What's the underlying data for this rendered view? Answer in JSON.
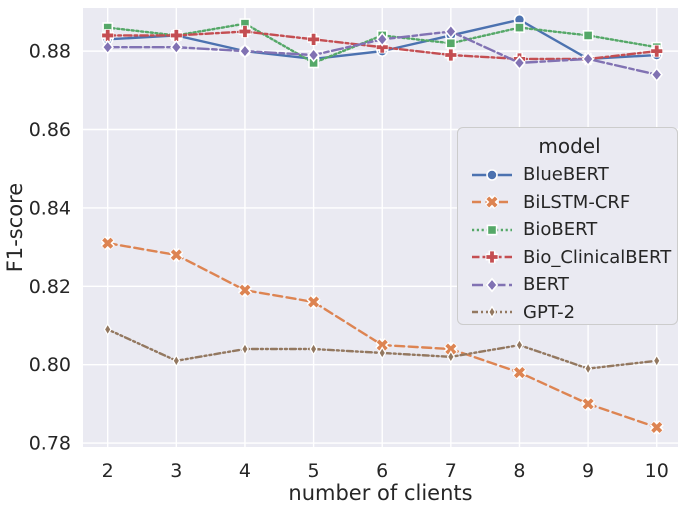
{
  "chart_data": {
    "type": "line",
    "title": "",
    "xlabel": "number of clients",
    "ylabel": "F1-score",
    "x": [
      2,
      3,
      4,
      5,
      6,
      7,
      8,
      9,
      10
    ],
    "xlim": [
      1.64,
      10.31
    ],
    "ylim": [
      0.779,
      0.891
    ],
    "xticks": [
      2,
      3,
      4,
      5,
      6,
      7,
      8,
      9,
      10
    ],
    "yticks": [
      0.78,
      0.8,
      0.82,
      0.84,
      0.86,
      0.88
    ],
    "grid": true,
    "legend_title": "model",
    "legend_position": "center right",
    "background_color": "#EAEAF2",
    "gridline_color": "#FFFFFF",
    "text_color": "#262626",
    "series": [
      {
        "name": "BlueBERT",
        "color": "#4C72B0",
        "marker": "circle",
        "linestyle": "solid",
        "values": [
          0.883,
          0.884,
          0.88,
          0.878,
          0.88,
          0.884,
          0.888,
          0.878,
          0.879
        ]
      },
      {
        "name": "BiLSTM-CRF",
        "color": "#DD8452",
        "marker": "x",
        "linestyle": "dashed",
        "values": [
          0.831,
          0.828,
          0.819,
          0.816,
          0.805,
          0.804,
          0.798,
          0.79,
          0.784
        ]
      },
      {
        "name": "BioBERT",
        "color": "#55A868",
        "marker": "square",
        "linestyle": "dotted",
        "values": [
          0.886,
          0.884,
          0.887,
          0.877,
          0.884,
          0.882,
          0.886,
          0.884,
          0.881
        ]
      },
      {
        "name": "Bio_ClinicalBERT",
        "color": "#C44E52",
        "marker": "plus",
        "linestyle": "dash-dot",
        "values": [
          0.884,
          0.884,
          0.885,
          0.883,
          0.881,
          0.879,
          0.878,
          0.878,
          0.88
        ]
      },
      {
        "name": "BERT",
        "color": "#8172B3",
        "marker": "diamond",
        "linestyle": "long-dash-dot",
        "values": [
          0.881,
          0.881,
          0.88,
          0.879,
          0.883,
          0.885,
          0.877,
          0.878,
          0.874
        ]
      },
      {
        "name": "GPT-2",
        "color": "#937860",
        "marker": "thin-diamond",
        "linestyle": "dash-dot-dot",
        "values": [
          0.809,
          0.801,
          0.804,
          0.804,
          0.803,
          0.802,
          0.805,
          0.799,
          0.801
        ]
      }
    ]
  }
}
